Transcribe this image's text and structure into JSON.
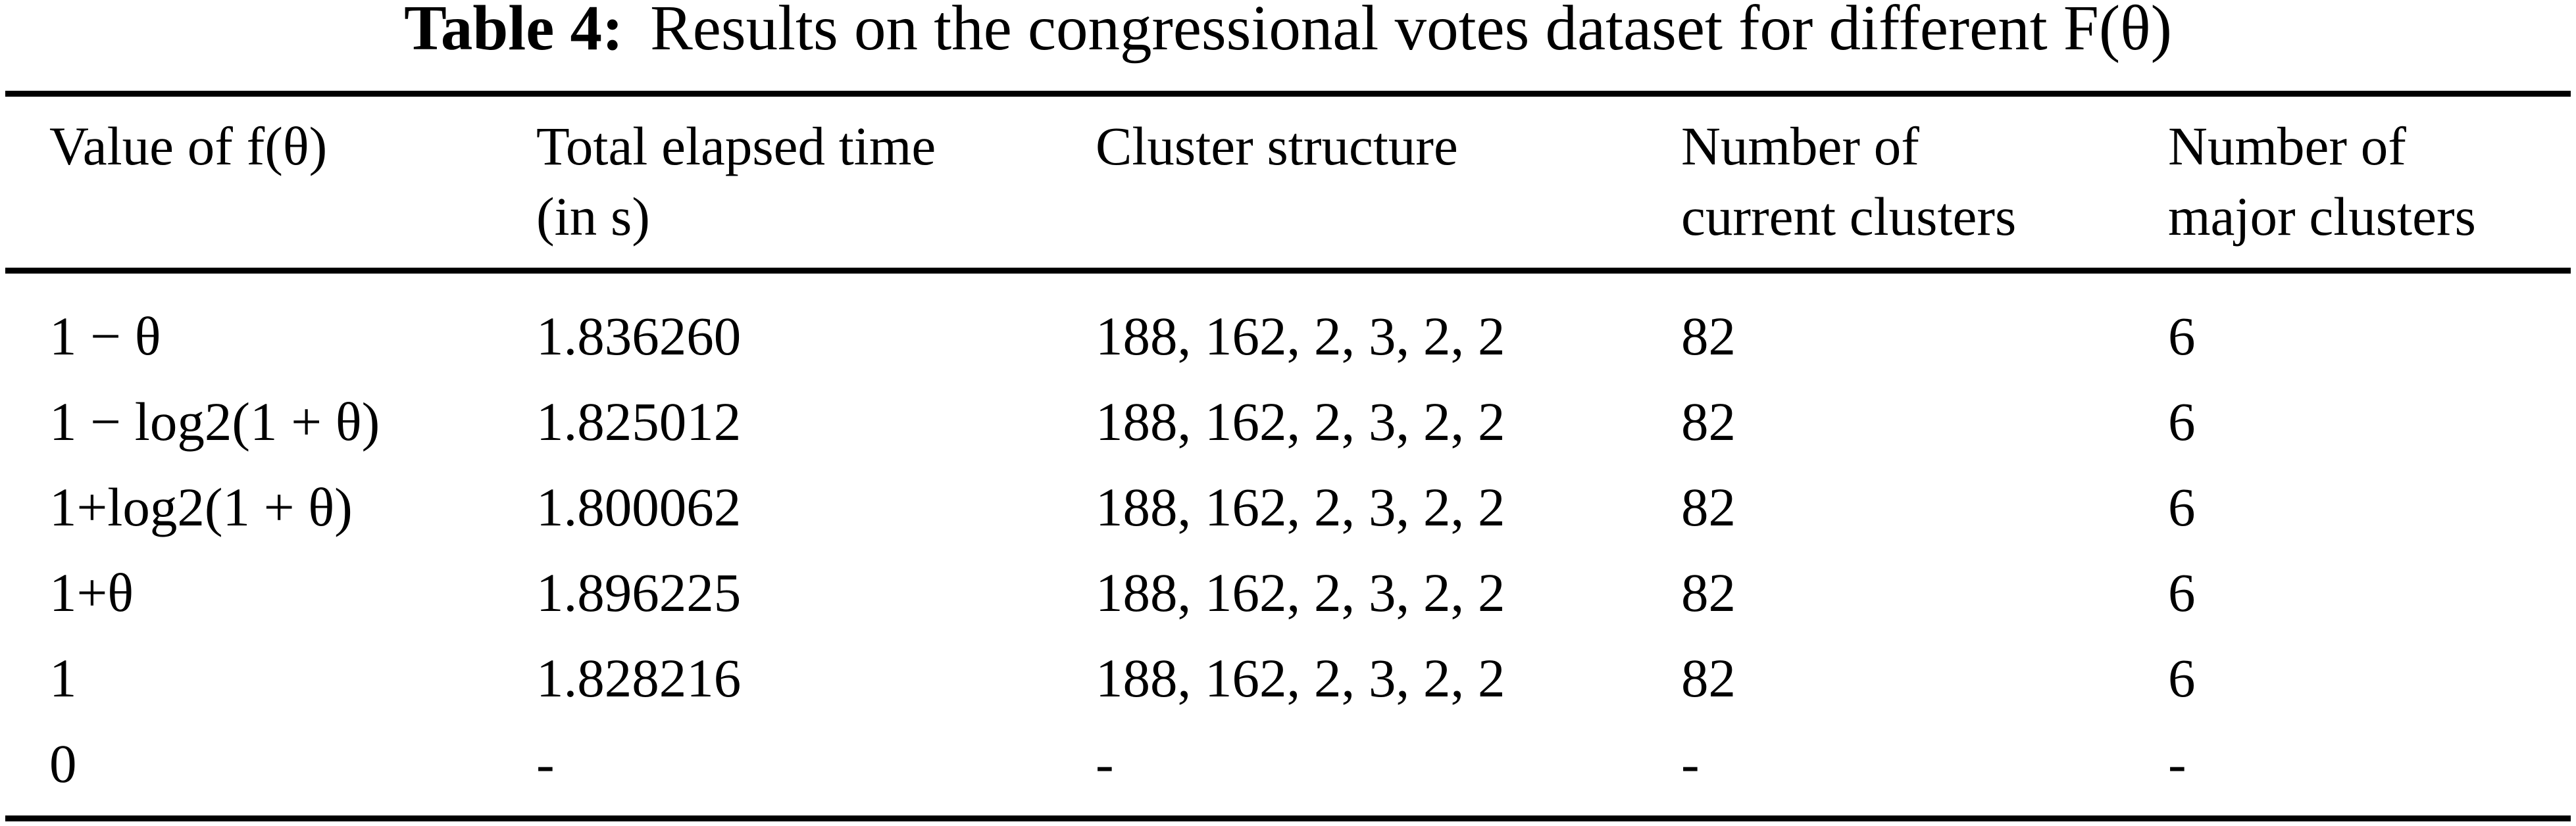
{
  "caption": {
    "label": "Table 4:",
    "text": "Results on the congressional votes dataset for different F(θ)"
  },
  "table": {
    "columns": [
      {
        "line1": "Value of f(θ)",
        "line2": ""
      },
      {
        "line1": "Total elapsed time",
        "line2": "(in s)"
      },
      {
        "line1": "Cluster structure",
        "line2": ""
      },
      {
        "line1": "Number of",
        "line2": "current clusters"
      },
      {
        "line1": "Number of",
        "line2": "major clusters"
      }
    ],
    "rows": [
      {
        "f_theta": "1 − θ",
        "elapsed_time": "1.836260",
        "cluster_structure": "188, 162, 2, 3, 2, 2",
        "current_clusters": "82",
        "major_clusters": "6"
      },
      {
        "f_theta": "1 − log2(1 + θ)",
        "elapsed_time": "1.825012",
        "cluster_structure": "188, 162, 2, 3, 2, 2",
        "current_clusters": "82",
        "major_clusters": "6"
      },
      {
        "f_theta": "1+log2(1 + θ)",
        "elapsed_time": "1.800062",
        "cluster_structure": "188, 162, 2, 3, 2, 2",
        "current_clusters": "82",
        "major_clusters": "6"
      },
      {
        "f_theta": "1+θ",
        "elapsed_time": "1.896225",
        "cluster_structure": "188, 162, 2, 3, 2, 2",
        "current_clusters": "82",
        "major_clusters": "6"
      },
      {
        "f_theta": "1",
        "elapsed_time": "1.828216",
        "cluster_structure": "188, 162, 2, 3, 2, 2",
        "current_clusters": "82",
        "major_clusters": "6"
      },
      {
        "f_theta": "0",
        "elapsed_time": "-",
        "cluster_structure": "-",
        "current_clusters": "-",
        "major_clusters": "-"
      }
    ]
  },
  "colors": {
    "text": "#000000",
    "background": "#ffffff",
    "rule": "#000000"
  }
}
